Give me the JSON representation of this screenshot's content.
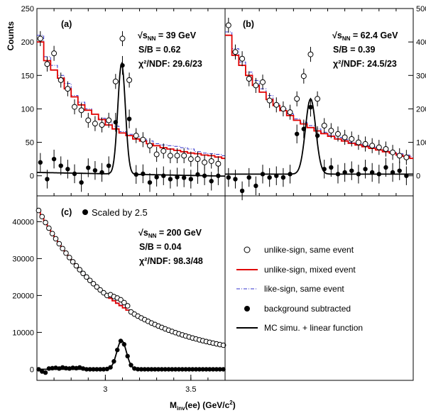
{
  "y_axis_title": "Counts",
  "x_axis_title": "M",
  "x_axis_title_sub": "inv",
  "x_axis_title_rest": "(ee) (GeV/c",
  "x_axis_title_sup": "2",
  "x_axis_title_end": ")",
  "legend": {
    "unlike_same": "unlike-sign, same event",
    "unlike_mixed": "unlike-sign, mixed event",
    "like_same": "like-sign, same event",
    "bg_sub": "background subtracted",
    "mc": "MC simu. + linear function"
  },
  "scaled_note": "Scaled by 2.5",
  "colors": {
    "unlike_mixed": "#e00000",
    "like_same": "#3333cc",
    "data": "#000000"
  },
  "chart_data": [
    {
      "type": "scatter",
      "panel": "(a)",
      "energy_prefix": "√",
      "energy_s": "s",
      "energy_sub": "NN",
      "energy_value": " = 39 GeV",
      "sb": "S/B = 0.62",
      "chi2": "χ²/NDF: 29.6/23",
      "xlim": [
        2.6,
        3.7
      ],
      "ylim": [
        -30,
        250
      ],
      "yticks": [
        0,
        50,
        100,
        150,
        200,
        250
      ],
      "ytick_labels": [
        "0",
        "50",
        "100",
        "150",
        "200",
        "250"
      ],
      "x_bins": [
        2.6,
        2.64,
        2.68,
        2.72,
        2.76,
        2.8,
        2.84,
        2.88,
        2.92,
        2.96,
        3.0,
        3.04,
        3.08,
        3.12,
        3.16,
        3.2,
        3.24,
        3.28,
        3.32,
        3.36,
        3.4,
        3.44,
        3.48,
        3.52,
        3.56,
        3.6,
        3.64,
        3.68,
        3.7
      ],
      "unlike_mixed": [
        200,
        172,
        158,
        146,
        130,
        118,
        106,
        98,
        92,
        84,
        76,
        70,
        64,
        60,
        55,
        52,
        48,
        45,
        42,
        40,
        38,
        36,
        34,
        33,
        31,
        30,
        28,
        26
      ],
      "like_same": [
        210,
        178,
        165,
        150,
        138,
        120,
        110,
        100,
        92,
        86,
        80,
        74,
        66,
        62,
        58,
        55,
        52,
        48,
        46,
        45,
        44,
        42,
        40,
        36,
        34,
        33,
        32,
        30
      ],
      "unlike_same": [
        {
          "x": 2.62,
          "y": 205
        },
        {
          "x": 2.66,
          "y": 167
        },
        {
          "x": 2.7,
          "y": 183
        },
        {
          "x": 2.74,
          "y": 143
        },
        {
          "x": 2.78,
          "y": 130
        },
        {
          "x": 2.82,
          "y": 103
        },
        {
          "x": 2.86,
          "y": 98
        },
        {
          "x": 2.9,
          "y": 83
        },
        {
          "x": 2.94,
          "y": 78
        },
        {
          "x": 2.98,
          "y": 76
        },
        {
          "x": 3.02,
          "y": 83
        },
        {
          "x": 3.06,
          "y": 141
        },
        {
          "x": 3.1,
          "y": 205
        },
        {
          "x": 3.14,
          "y": 143
        },
        {
          "x": 3.18,
          "y": 60
        },
        {
          "x": 3.22,
          "y": 54
        },
        {
          "x": 3.26,
          "y": 45
        },
        {
          "x": 3.3,
          "y": 32
        },
        {
          "x": 3.34,
          "y": 37
        },
        {
          "x": 3.38,
          "y": 30
        },
        {
          "x": 3.42,
          "y": 30
        },
        {
          "x": 3.46,
          "y": 30
        },
        {
          "x": 3.5,
          "y": 25
        },
        {
          "x": 3.54,
          "y": 25
        },
        {
          "x": 3.58,
          "y": 20
        },
        {
          "x": 3.62,
          "y": 22
        },
        {
          "x": 3.66,
          "y": 18
        }
      ],
      "bg_sub": [
        {
          "x": 2.62,
          "y": 20
        },
        {
          "x": 2.66,
          "y": -5
        },
        {
          "x": 2.7,
          "y": 25
        },
        {
          "x": 2.74,
          "y": 15
        },
        {
          "x": 2.78,
          "y": 10
        },
        {
          "x": 2.82,
          "y": 3
        },
        {
          "x": 2.86,
          "y": -10
        },
        {
          "x": 2.9,
          "y": 12
        },
        {
          "x": 2.94,
          "y": 8
        },
        {
          "x": 2.98,
          "y": 5
        },
        {
          "x": 3.02,
          "y": 15
        },
        {
          "x": 3.06,
          "y": 80
        },
        {
          "x": 3.1,
          "y": 165
        },
        {
          "x": 3.14,
          "y": 85
        },
        {
          "x": 3.18,
          "y": 2
        },
        {
          "x": 3.22,
          "y": 3
        },
        {
          "x": 3.26,
          "y": -10
        },
        {
          "x": 3.3,
          "y": -2
        },
        {
          "x": 3.34,
          "y": 0
        },
        {
          "x": 3.38,
          "y": -5
        },
        {
          "x": 3.42,
          "y": -2
        },
        {
          "x": 3.46,
          "y": -3
        },
        {
          "x": 3.5,
          "y": -5
        },
        {
          "x": 3.54,
          "y": 2
        },
        {
          "x": 3.58,
          "y": 0
        },
        {
          "x": 3.62,
          "y": -8
        },
        {
          "x": 3.66,
          "y": 0
        }
      ],
      "mc_peak": {
        "mu": 3.095,
        "sigma": 0.022,
        "amp": 165,
        "base0": 5,
        "slope": -5
      }
    },
    {
      "type": "scatter",
      "panel": "(b)",
      "energy_prefix": "√",
      "energy_s": "s",
      "energy_sub": "NN",
      "energy_value": " = 62.4 GeV",
      "sb": "S/B = 0.39",
      "chi2": "χ²/NDF: 24.5/23",
      "xlim": [
        2.6,
        3.7
      ],
      "ylim": [
        -60,
        500
      ],
      "yticks": [
        0,
        100,
        200,
        300,
        400,
        500
      ],
      "ytick_labels": [
        "0",
        "100",
        "200",
        "300",
        "400",
        "500"
      ],
      "x_bins": [
        2.6,
        2.64,
        2.68,
        2.72,
        2.76,
        2.8,
        2.84,
        2.88,
        2.92,
        2.96,
        3.0,
        3.04,
        3.08,
        3.12,
        3.16,
        3.2,
        3.24,
        3.28,
        3.32,
        3.36,
        3.4,
        3.44,
        3.48,
        3.52,
        3.56,
        3.6,
        3.64,
        3.68,
        3.7
      ],
      "unlike_mixed": [
        420,
        360,
        330,
        300,
        270,
        250,
        228,
        210,
        195,
        180,
        166,
        155,
        144,
        134,
        126,
        118,
        110,
        104,
        97,
        92,
        87,
        82,
        77,
        72,
        68,
        62,
        58,
        52
      ],
      "like_same": [
        430,
        380,
        340,
        310,
        285,
        260,
        240,
        215,
        200,
        185,
        170,
        160,
        150,
        140,
        130,
        122,
        115,
        108,
        100,
        95,
        90,
        86,
        80,
        75,
        70,
        66,
        62,
        58
      ],
      "unlike_same": [
        {
          "x": 2.62,
          "y": 450
        },
        {
          "x": 2.66,
          "y": 370
        },
        {
          "x": 2.7,
          "y": 350
        },
        {
          "x": 2.74,
          "y": 290
        },
        {
          "x": 2.78,
          "y": 270
        },
        {
          "x": 2.82,
          "y": 280
        },
        {
          "x": 2.86,
          "y": 225
        },
        {
          "x": 2.9,
          "y": 212
        },
        {
          "x": 2.94,
          "y": 200
        },
        {
          "x": 2.98,
          "y": 190
        },
        {
          "x": 3.02,
          "y": 230
        },
        {
          "x": 3.06,
          "y": 298
        },
        {
          "x": 3.1,
          "y": 363
        },
        {
          "x": 3.14,
          "y": 230
        },
        {
          "x": 3.18,
          "y": 150
        },
        {
          "x": 3.22,
          "y": 135
        },
        {
          "x": 3.26,
          "y": 125
        },
        {
          "x": 3.3,
          "y": 115
        },
        {
          "x": 3.34,
          "y": 110
        },
        {
          "x": 3.38,
          "y": 100
        },
        {
          "x": 3.42,
          "y": 95
        },
        {
          "x": 3.46,
          "y": 90
        },
        {
          "x": 3.5,
          "y": 85
        },
        {
          "x": 3.54,
          "y": 80
        },
        {
          "x": 3.58,
          "y": 70
        },
        {
          "x": 3.62,
          "y": 60
        },
        {
          "x": 3.66,
          "y": 55
        }
      ],
      "bg_sub": [
        {
          "x": 2.62,
          "y": -5
        },
        {
          "x": 2.66,
          "y": -10
        },
        {
          "x": 2.7,
          "y": -45
        },
        {
          "x": 2.74,
          "y": -5
        },
        {
          "x": 2.78,
          "y": -30
        },
        {
          "x": 2.82,
          "y": 5
        },
        {
          "x": 2.86,
          "y": -5
        },
        {
          "x": 2.9,
          "y": 0
        },
        {
          "x": 2.94,
          "y": -5
        },
        {
          "x": 2.98,
          "y": 5
        },
        {
          "x": 3.02,
          "y": 125
        },
        {
          "x": 3.06,
          "y": 140
        },
        {
          "x": 3.1,
          "y": 205
        },
        {
          "x": 3.14,
          "y": 120
        },
        {
          "x": 3.18,
          "y": 20
        },
        {
          "x": 3.22,
          "y": 25
        },
        {
          "x": 3.26,
          "y": 5
        },
        {
          "x": 3.3,
          "y": 10
        },
        {
          "x": 3.34,
          "y": 15
        },
        {
          "x": 3.38,
          "y": 5
        },
        {
          "x": 3.42,
          "y": 20
        },
        {
          "x": 3.46,
          "y": 10
        },
        {
          "x": 3.5,
          "y": 5
        },
        {
          "x": 3.54,
          "y": 25
        },
        {
          "x": 3.58,
          "y": 10
        },
        {
          "x": 3.62,
          "y": 15
        },
        {
          "x": 3.66,
          "y": 0
        }
      ],
      "mc_peak": {
        "mu": 3.1,
        "sigma": 0.03,
        "amp": 225,
        "base0": 5,
        "slope": 0
      }
    },
    {
      "type": "scatter",
      "panel": "(c)",
      "energy_prefix": "√",
      "energy_s": "s",
      "energy_sub": "NN",
      "energy_value": " = 200 GeV",
      "sb": "S/B = 0.04",
      "chi2": "χ²/NDF: 98.3/48",
      "xlim": [
        2.6,
        3.7
      ],
      "ylim": [
        -3000,
        47000
      ],
      "xticks": [
        3.0,
        3.5
      ],
      "xtick_labels": [
        "3",
        "3.5"
      ],
      "yticks": [
        0,
        10000,
        20000,
        30000,
        40000
      ],
      "ytick_labels": [
        "0",
        "10000",
        "20000",
        "30000",
        "40000"
      ],
      "curve": {
        "A": 40000,
        "k": 2.08,
        "x0": 2.62,
        "c": 2200
      },
      "peak_overlay": {
        "mu": 3.09,
        "sigma": 0.028,
        "amp": 700
      },
      "bg_sub_peak": {
        "mu": 3.095,
        "sigma": 0.028,
        "amp": 7800
      },
      "bg_sub_noise": [
        0,
        -600,
        -900,
        200,
        300,
        400,
        200,
        500,
        300,
        200,
        400,
        300,
        500,
        200,
        0,
        0,
        0,
        0,
        0,
        0,
        0,
        0,
        0,
        0,
        0,
        0,
        0,
        0,
        0,
        0,
        0,
        0,
        0,
        0,
        0,
        0,
        0,
        0,
        0,
        0,
        0,
        0,
        0,
        0,
        0,
        0,
        0,
        0,
        0,
        0,
        0,
        0,
        0,
        0,
        0
      ]
    }
  ]
}
